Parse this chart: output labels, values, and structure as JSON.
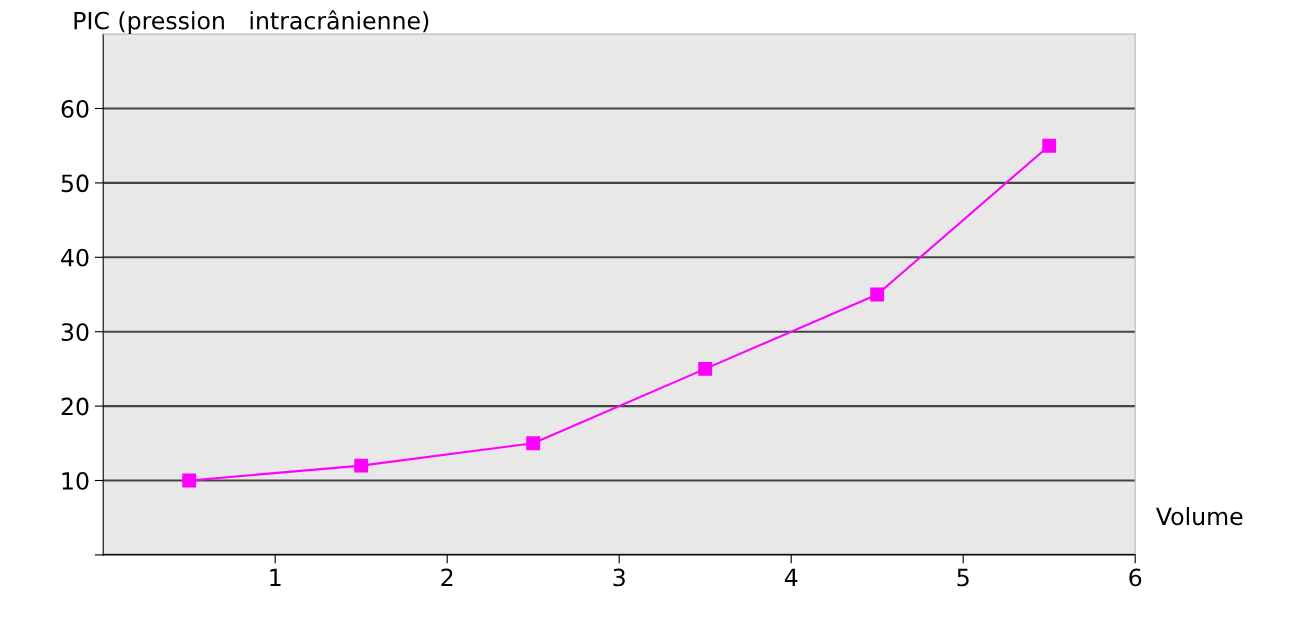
{
  "chart_data": {
    "type": "line",
    "ylabel": "PIC (pression   intracrânienne)",
    "xlabel": "Volume",
    "x": [
      0.5,
      1.5,
      2.5,
      3.5,
      4.5,
      5.5
    ],
    "series": [
      {
        "color": "#ff00ff",
        "values": [
          10,
          12,
          15,
          25,
          35,
          55
        ]
      }
    ],
    "xlim": [
      0,
      6
    ],
    "xticks": [
      1,
      2,
      3,
      4,
      5,
      6
    ],
    "ylim": [
      0,
      70
    ],
    "yticks": [
      {
        "value": 0,
        "label": null
      },
      10,
      20,
      30,
      40,
      50,
      60
    ],
    "grid": "y",
    "marker": "square",
    "line_style": "solid",
    "legend": false
  }
}
